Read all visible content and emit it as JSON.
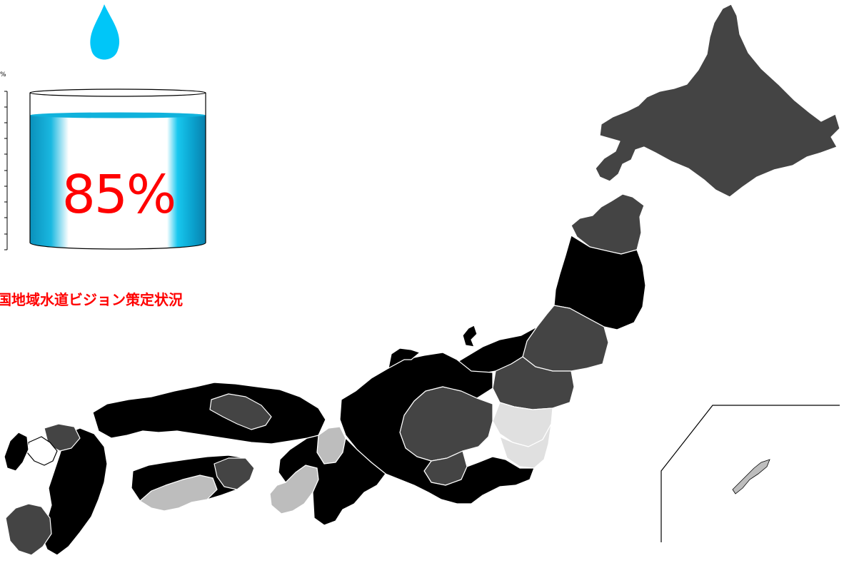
{
  "title": "国地域水道ビジョン策定状況",
  "gauge": {
    "percent_label": "85%",
    "fill_fraction": 0.85,
    "unit_label": "%"
  },
  "colors": {
    "category_a": "#000000",
    "category_b": "#444444",
    "category_c": "#bdbdbd",
    "category_d": "#e0e0e0",
    "category_e": "#ffffff",
    "drop": "#00c6f8",
    "gauge_fill": "#10b2dc",
    "label": "#ff0000"
  },
  "icons": {
    "drop": "water-drop-icon"
  }
}
